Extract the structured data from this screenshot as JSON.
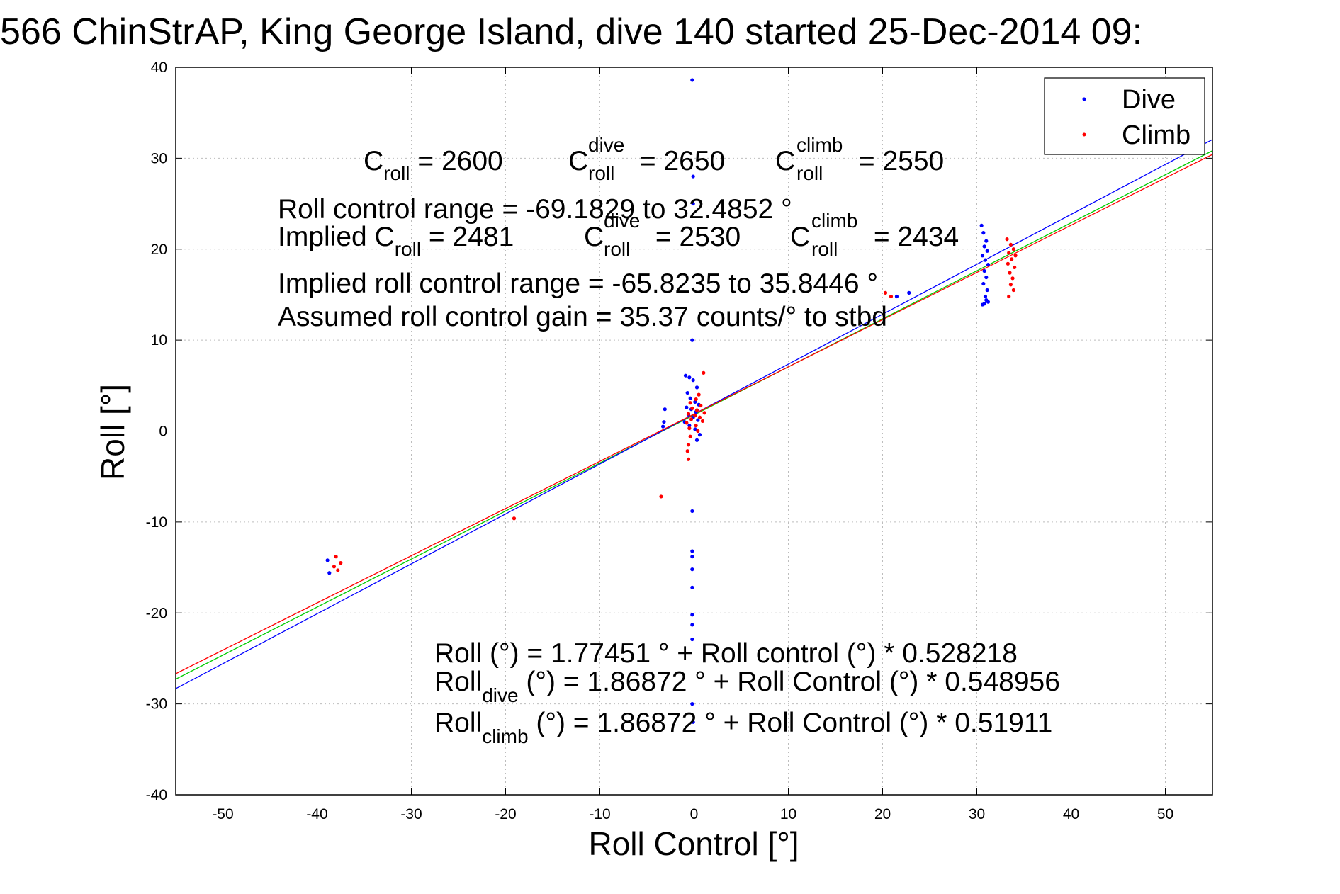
{
  "title": "566 ChinStrAP, King George Island, dive 140 started 25-Dec-2014 09:",
  "chart_data": {
    "type": "scatter",
    "title": "566 ChinStrAP, King George Island, dive 140 started 25-Dec-2014 09:",
    "xlabel": "Roll Control [°]",
    "ylabel": "Roll [°]",
    "xlim": [
      -55,
      55
    ],
    "ylim": [
      -40,
      40
    ],
    "xticks": [
      -50,
      -40,
      -30,
      -20,
      -10,
      0,
      10,
      20,
      30,
      40,
      50
    ],
    "yticks": [
      -40,
      -30,
      -20,
      -10,
      0,
      10,
      20,
      30,
      40
    ],
    "grid": true,
    "legend": {
      "position": "top-right",
      "entries": [
        "Dive",
        "Climb"
      ]
    },
    "series": [
      {
        "name": "Dive",
        "color": "#0000ff",
        "points": [
          [
            -0.2,
            38.6
          ],
          [
            -0.1,
            28.0
          ],
          [
            -0.1,
            25.0
          ],
          [
            -0.2,
            10.0
          ],
          [
            -0.9,
            6.1
          ],
          [
            -0.5,
            5.9
          ],
          [
            -0.1,
            5.6
          ],
          [
            0.3,
            4.8
          ],
          [
            -0.7,
            4.2
          ],
          [
            -0.4,
            3.6
          ],
          [
            0.1,
            3.2
          ],
          [
            0.5,
            2.9
          ],
          [
            -0.8,
            2.6
          ],
          [
            -0.3,
            2.4
          ],
          [
            0.2,
            2.1
          ],
          [
            -0.6,
            1.8
          ],
          [
            -0.1,
            1.5
          ],
          [
            0.4,
            1.2
          ],
          [
            -1.0,
            1.0
          ],
          [
            -0.5,
            0.6
          ],
          [
            0.1,
            0.2
          ],
          [
            0.6,
            -0.4
          ],
          [
            0.3,
            -1.0
          ],
          [
            -3.1,
            2.4
          ],
          [
            -3.2,
            1.0
          ],
          [
            -3.3,
            0.5
          ],
          [
            -0.2,
            -8.8
          ],
          [
            -0.2,
            -13.2
          ],
          [
            -0.2,
            -13.8
          ],
          [
            -0.2,
            -15.2
          ],
          [
            -0.2,
            -17.2
          ],
          [
            -0.2,
            -20.2
          ],
          [
            -0.2,
            -21.3
          ],
          [
            -0.2,
            -22.9
          ],
          [
            -0.2,
            -30.0
          ],
          [
            -0.1,
            -32.0
          ],
          [
            30.5,
            22.6
          ],
          [
            30.7,
            21.8
          ],
          [
            31.0,
            20.9
          ],
          [
            30.8,
            20.3
          ],
          [
            31.1,
            19.8
          ],
          [
            30.6,
            19.3
          ],
          [
            30.9,
            18.8
          ],
          [
            31.2,
            18.3
          ],
          [
            30.8,
            17.6
          ],
          [
            31.0,
            16.9
          ],
          [
            30.7,
            16.2
          ],
          [
            31.1,
            15.5
          ],
          [
            30.9,
            14.8
          ],
          [
            31.0,
            14.4
          ],
          [
            30.8,
            14.0
          ],
          [
            31.2,
            14.2
          ],
          [
            30.6,
            13.9
          ],
          [
            21.5,
            14.8
          ],
          [
            22.8,
            15.2
          ],
          [
            -38.9,
            -14.2
          ],
          [
            -38.7,
            -15.6
          ]
        ]
      },
      {
        "name": "Climb",
        "color": "#ff0000",
        "points": [
          [
            1.0,
            6.4
          ],
          [
            0.5,
            4.0
          ],
          [
            0.2,
            3.5
          ],
          [
            -0.4,
            3.1
          ],
          [
            0.7,
            2.8
          ],
          [
            -0.2,
            2.5
          ],
          [
            0.3,
            2.3
          ],
          [
            1.1,
            2.0
          ],
          [
            -0.6,
            1.9
          ],
          [
            0.1,
            1.7
          ],
          [
            0.6,
            1.5
          ],
          [
            -0.3,
            1.3
          ],
          [
            0.9,
            1.1
          ],
          [
            -0.8,
            0.9
          ],
          [
            0.2,
            0.6
          ],
          [
            -0.5,
            0.3
          ],
          [
            0.4,
            0.0
          ],
          [
            -0.4,
            -0.6
          ],
          [
            -0.6,
            -1.5
          ],
          [
            -0.7,
            -2.2
          ],
          [
            -0.6,
            -3.1
          ],
          [
            -3.5,
            -7.2
          ],
          [
            -19.1,
            -9.6
          ],
          [
            33.2,
            21.1
          ],
          [
            33.6,
            20.5
          ],
          [
            33.9,
            20.0
          ],
          [
            33.4,
            19.6
          ],
          [
            34.1,
            19.3
          ],
          [
            33.7,
            18.9
          ],
          [
            33.3,
            18.4
          ],
          [
            34.0,
            18.0
          ],
          [
            33.5,
            17.4
          ],
          [
            33.8,
            16.8
          ],
          [
            33.6,
            16.1
          ],
          [
            33.9,
            15.5
          ],
          [
            33.4,
            14.8
          ],
          [
            20.3,
            15.2
          ],
          [
            20.9,
            14.8
          ],
          [
            -38.0,
            -13.8
          ],
          [
            -37.5,
            -14.5
          ],
          [
            -38.2,
            -14.9
          ],
          [
            -37.8,
            -15.3
          ]
        ]
      }
    ],
    "fit_lines": [
      {
        "name": "all",
        "color": "#00cc00",
        "intercept": 1.77451,
        "slope": 0.528218
      },
      {
        "name": "dive",
        "color": "#0000ff",
        "intercept": 1.86872,
        "slope": 0.548956
      },
      {
        "name": "climb",
        "color": "#ff0000",
        "intercept": 1.86872,
        "slope": 0.51911
      }
    ],
    "annotations": {
      "c_line": {
        "c1": "C",
        "c1_sub": "roll",
        "c1_val": " = 2600",
        "c2": "C",
        "c2_sup": "dive",
        "c2_sub": "roll",
        "c2_val": " = 2650",
        "c3": "C",
        "c3_sup": "climb",
        "c3_sub": "roll",
        "c3_val": " = 2550"
      },
      "range": "Roll control range = -69.1829 to 32.4852 °",
      "implied": {
        "a": "Implied C",
        "a_sub": "roll",
        "a_val": " = 2481",
        "b": "C",
        "b_sup": "dive",
        "b_sub": "roll",
        "b_val": " = 2530",
        "c": "C",
        "c_sup": "climb",
        "c_sub": "roll",
        "c_val": " = 2434"
      },
      "implied_range": "Implied roll control range = -65.8235 to 35.8446 °",
      "gain": "Assumed roll control gain = 35.37 counts/° to stbd",
      "eq1": "Roll (°) = 1.77451 ° + Roll control (°) * 0.528218",
      "eq2": {
        "a": "Roll",
        "sub": "dive",
        "b": " (°) = 1.86872 ° + Roll Control (°) * 0.548956"
      },
      "eq3": {
        "a": "Roll",
        "sub": "climb",
        "b": " (°) = 1.86872 ° + Roll Control (°) * 0.51911"
      }
    }
  }
}
